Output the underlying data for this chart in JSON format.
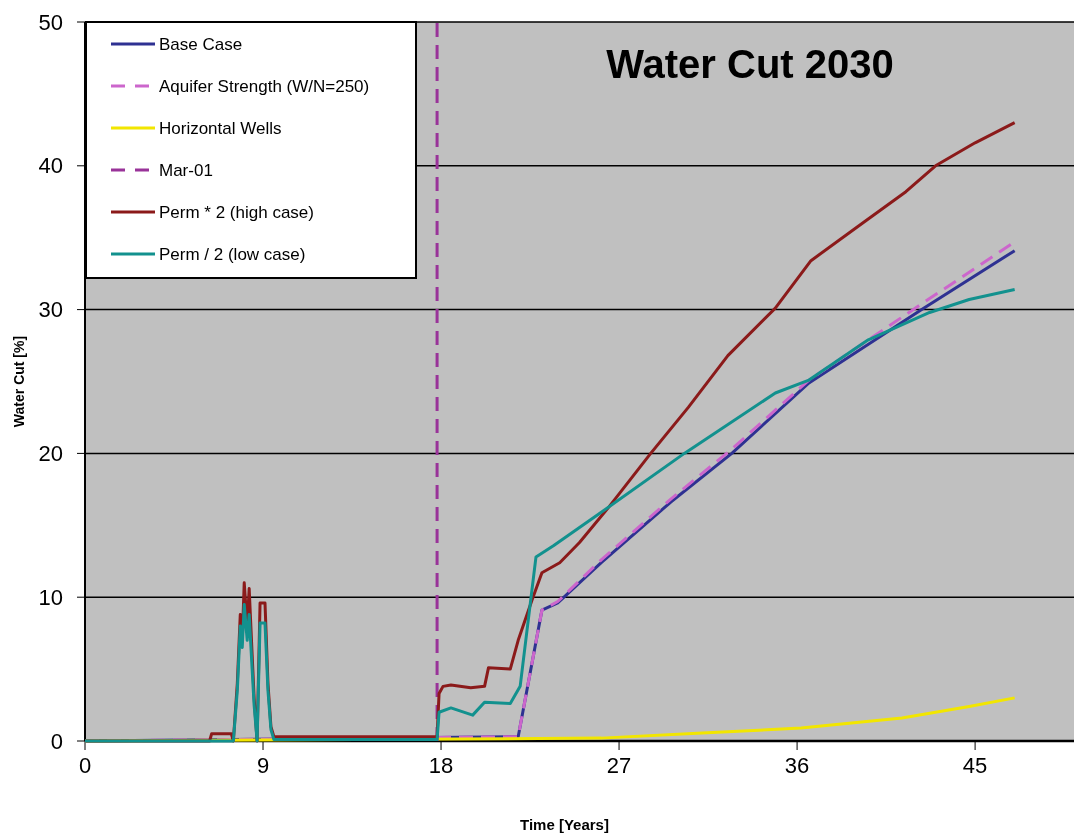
{
  "chart_data": {
    "type": "line",
    "title": "Water Cut 2030",
    "xlabel": "Time [Years]",
    "ylabel": "Water Cut [%]",
    "xlim": [
      0,
      50
    ],
    "xticks": [
      0,
      9,
      18,
      27,
      36,
      45
    ],
    "ylim": [
      0,
      50
    ],
    "yticks": [
      0,
      10,
      20,
      30,
      40,
      50
    ],
    "grid": "y",
    "legend": "top left",
    "marker": "none",
    "series": [
      {
        "name": "Base Case",
        "color": "#2e3192",
        "line_style": "solid",
        "x": [
          0,
          21.9,
          23.1,
          23.9,
          26.1,
          29.6,
          32.7,
          36.6,
          42.3,
          47.0
        ],
        "values": [
          0,
          0.3,
          9.1,
          9.6,
          12.4,
          16.6,
          20.0,
          24.9,
          30.0,
          34.1
        ]
      },
      {
        "name": "Aquifer Strength (W/N=250)",
        "color": "#cc66cc",
        "line_style": "dashed",
        "x": [
          0,
          21.9,
          23.1,
          23.9,
          26.1,
          29.6,
          32.7,
          36.6,
          42.3,
          47.0
        ],
        "values": [
          0,
          0.3,
          9.1,
          9.7,
          12.6,
          16.8,
          20.3,
          25.1,
          30.4,
          34.7
        ]
      },
      {
        "name": "Horizontal Wells",
        "color": "#f2e600",
        "line_style": "solid",
        "x": [
          0,
          26.1,
          31.2,
          36.2,
          41.3,
          44.7,
          47.0
        ],
        "values": [
          0,
          0.2,
          0.55,
          0.9,
          1.6,
          2.4,
          3.0
        ]
      },
      {
        "name": "Mar-01",
        "color": "#993399",
        "line_style": "dashed",
        "x": [
          17.8,
          17.8
        ],
        "values": [
          0,
          50
        ]
      },
      {
        "name": "Perm * 2 (high case)",
        "color": "#8b1a1a",
        "line_style": "solid",
        "x": [
          0,
          6.3,
          6.4,
          7.4,
          7.5,
          7.7,
          7.85,
          7.95,
          8.05,
          8.2,
          8.3,
          8.45,
          8.55,
          8.7,
          8.85,
          9.1,
          9.25,
          9.4,
          9.55,
          17.8,
          17.9,
          18.1,
          18.5,
          19.5,
          20.2,
          20.4,
          21.5,
          21.9,
          22.6,
          23.1,
          24,
          25,
          26.5,
          28.6,
          30.5,
          32.5,
          34.9,
          36.7,
          39.3,
          41.5,
          43.0,
          45.0,
          47.0
        ],
        "values": [
          0,
          0,
          0.5,
          0.5,
          0,
          4,
          8.8,
          7,
          11,
          8,
          10.6,
          6,
          3,
          0,
          9.6,
          9.6,
          4,
          1,
          0.3,
          0.3,
          3.3,
          3.8,
          3.9,
          3.7,
          3.8,
          5.1,
          5.0,
          7.0,
          9.8,
          11.7,
          12.4,
          13.8,
          16.3,
          20.0,
          23.2,
          26.8,
          30.1,
          33.4,
          36.0,
          38.2,
          40.0,
          41.6,
          43.0
        ]
      },
      {
        "name": "Perm / 2 (low case)",
        "color": "#12918e",
        "line_style": "solid",
        "x": [
          0,
          7.5,
          7.7,
          7.85,
          7.95,
          8.05,
          8.2,
          8.3,
          8.45,
          8.55,
          8.7,
          8.85,
          9.1,
          9.25,
          9.4,
          9.55,
          17.8,
          17.9,
          18.5,
          19.6,
          20.2,
          21.5,
          22.0,
          22.8,
          23.7,
          26.3,
          30.3,
          34.9,
          36.6,
          39.6,
          42.7,
          44.7,
          47.0
        ],
        "values": [
          0,
          0,
          3.5,
          8,
          6.5,
          9.5,
          7,
          8.8,
          5,
          2.5,
          0,
          8.2,
          8.2,
          3.5,
          0.8,
          0.1,
          0.1,
          2.0,
          2.3,
          1.8,
          2.7,
          2.6,
          3.8,
          12.8,
          13.6,
          16.1,
          20.0,
          24.2,
          25.1,
          27.9,
          29.8,
          30.7,
          31.4
        ]
      }
    ]
  }
}
